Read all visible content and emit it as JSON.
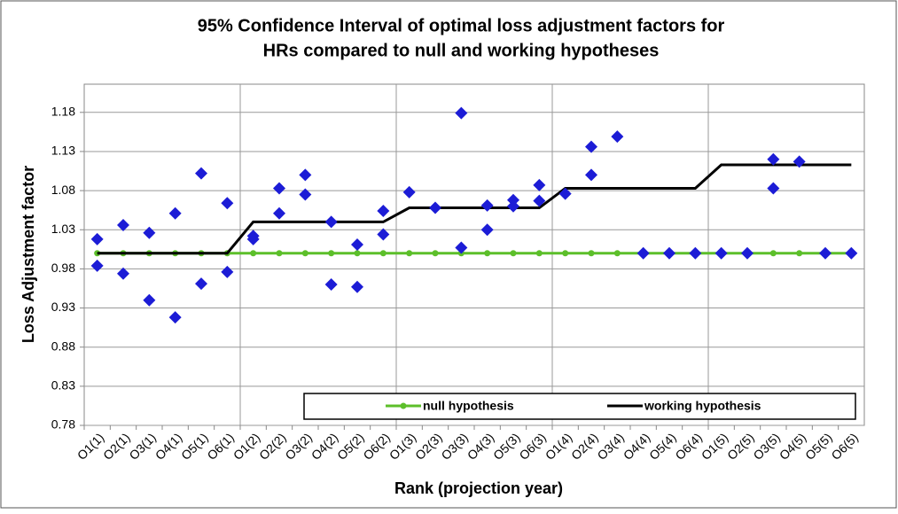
{
  "chart_data": {
    "type": "line",
    "title": [
      "95% Confidence Interval of optimal loss adjustment factors for",
      "HRs compared to null and working hypotheses"
    ],
    "x_label": "Rank (projection year)",
    "y_label": "Loss Adjustment factor",
    "categories": [
      "O1(1)",
      "O2(1)",
      "O3(1)",
      "O4(1)",
      "O5(1)",
      "O6(1)",
      "O1(2)",
      "O2(2)",
      "O3(2)",
      "O4(2)",
      "O5(2)",
      "O6(2)",
      "O1(3)",
      "O2(3)",
      "O3(3)",
      "O4(3)",
      "O5(3)",
      "O6(3)",
      "O1(4)",
      "O2(4)",
      "O3(4)",
      "O4(4)",
      "O5(4)",
      "O6(4)",
      "O1(5)",
      "O2(5)",
      "O3(5)",
      "O4(5)",
      "O5(5)",
      "O6(5)"
    ],
    "series": [
      {
        "name": "null hypothesis",
        "color": "#5cbf2a",
        "marker": "circle",
        "values": [
          1,
          1,
          1,
          1,
          1,
          1,
          1,
          1,
          1,
          1,
          1,
          1,
          1,
          1,
          1,
          1,
          1,
          1,
          1,
          1,
          1,
          1,
          1,
          1,
          1,
          1,
          1,
          1,
          1,
          1
        ]
      },
      {
        "name": "working hypothesis",
        "color": "#000000",
        "values": [
          1,
          1,
          1,
          1,
          1,
          1,
          1.04,
          1.04,
          1.04,
          1.04,
          1.04,
          1.04,
          1.058,
          1.058,
          1.058,
          1.058,
          1.058,
          1.058,
          1.083,
          1.083,
          1.083,
          1.083,
          1.083,
          1.083,
          1.113,
          1.113,
          1.113,
          1.113,
          1.113,
          1.113
        ]
      },
      {
        "color": "#1c1cd6",
        "marker": "diamond",
        "values": [
          1.018,
          1.036,
          1.026,
          1.051,
          1.102,
          1.064,
          1.022,
          1.083,
          1.1,
          1.04,
          1.011,
          1.054,
          1.078,
          1.058,
          1.179,
          1.061,
          1.068,
          1.087,
          1.076,
          1.136,
          1.149,
          1,
          1,
          1,
          1,
          1,
          1.12,
          1.117,
          1,
          1
        ]
      },
      {
        "color": "#1c1cd6",
        "marker": "diamond",
        "values": [
          0.984,
          0.974,
          0.94,
          0.918,
          0.961,
          0.976,
          1.018,
          1.051,
          1.075,
          0.96,
          0.957,
          1.024,
          null,
          null,
          1.007,
          1.03,
          1.06,
          1.067,
          null,
          1.1,
          null,
          null,
          null,
          null,
          null,
          null,
          1.083,
          null,
          null,
          null
        ]
      }
    ],
    "ylim": [
      0.78,
      1.216
    ],
    "yticks": [
      0.78,
      0.83,
      0.88,
      0.93,
      0.98,
      1.03,
      1.08,
      1.13,
      1.18
    ],
    "grid": true
  }
}
